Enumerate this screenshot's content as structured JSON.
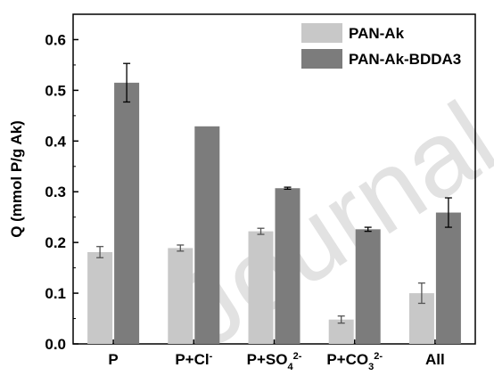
{
  "watermark": "Journal Pre-proof",
  "chart_data": {
    "type": "bar",
    "title": "",
    "xlabel": "",
    "ylabel": "Q (mmol P/g Ak)",
    "ylim": [
      0,
      0.65
    ],
    "yticks": [
      "0.0",
      "0.1",
      "0.2",
      "0.3",
      "0.4",
      "0.5",
      "0.6"
    ],
    "categories": [
      {
        "parts": [
          {
            "t": "P"
          }
        ]
      },
      {
        "parts": [
          {
            "t": "P+Cl"
          },
          {
            "t": "-",
            "sup": true
          }
        ]
      },
      {
        "parts": [
          {
            "t": "P+SO"
          },
          {
            "t": "4",
            "sub": true
          },
          {
            "t": "2-",
            "sup": true
          }
        ]
      },
      {
        "parts": [
          {
            "t": "P+CO"
          },
          {
            "t": "3",
            "sub": true
          },
          {
            "t": "2-",
            "sup": true
          }
        ]
      },
      {
        "parts": [
          {
            "t": "All"
          }
        ]
      }
    ],
    "series": [
      {
        "name": "PAN-Ak",
        "color": "#c8c8c8",
        "values": [
          0.181,
          0.189,
          0.222,
          0.048,
          0.1
        ],
        "errors": [
          0.011,
          0.006,
          0.006,
          0.007,
          0.02
        ]
      },
      {
        "name": "PAN-Ak-BDDA3",
        "color": "#7c7c7c",
        "values": [
          0.515,
          0.429,
          0.307,
          0.226,
          0.259
        ],
        "errors": [
          0.038,
          0.0,
          0.002,
          0.004,
          0.029
        ]
      }
    ],
    "legend_position": "top-right",
    "grid": false
  }
}
